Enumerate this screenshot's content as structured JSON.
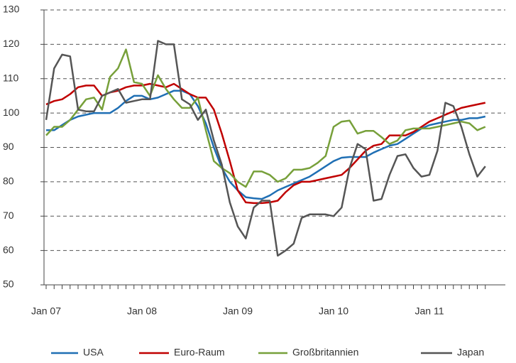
{
  "chart_data": {
    "type": "line",
    "categories": [
      "Jan 07",
      null,
      null,
      null,
      null,
      null,
      null,
      null,
      null,
      null,
      null,
      null,
      "Jan 08",
      null,
      null,
      null,
      null,
      null,
      null,
      null,
      null,
      null,
      null,
      null,
      "Jan 09",
      null,
      null,
      null,
      null,
      null,
      null,
      null,
      null,
      null,
      null,
      null,
      "Jan 10",
      null,
      null,
      null,
      null,
      null,
      null,
      null,
      null,
      null,
      null,
      null,
      "Jan 11",
      null,
      null,
      null,
      null,
      null,
      null,
      null
    ],
    "ylim": [
      50,
      130
    ],
    "yticks": [
      50,
      60,
      70,
      80,
      90,
      100,
      110,
      120,
      130
    ],
    "grid": true,
    "legend": "bottom",
    "series": [
      {
        "name": "USA",
        "color": "#1f6fb4",
        "values": [
          95,
          95,
          96.5,
          98,
          99,
          99.5,
          100,
          100,
          100,
          101.5,
          103.5,
          105,
          105,
          104,
          104.5,
          105.5,
          106.5,
          106.5,
          105.5,
          102,
          97,
          90,
          84,
          80,
          77.5,
          75.5,
          75.2,
          75,
          76,
          77.5,
          78.5,
          79.5,
          80.5,
          81.5,
          83,
          84.5,
          86,
          87,
          87.2,
          87.2,
          87.2,
          88.5,
          89.5,
          90.5,
          91,
          92.5,
          94,
          95.5,
          96.5,
          97,
          97.5,
          98,
          98,
          98.5,
          98.5,
          99
        ]
      },
      {
        "name": "Euro-Raum",
        "color": "#c00000",
        "values": [
          102.5,
          103.5,
          104,
          105.5,
          107.5,
          108,
          108,
          105,
          106,
          106.5,
          107.5,
          108,
          108,
          108.5,
          108,
          107.5,
          108.5,
          107,
          105.5,
          104.5,
          104.5,
          101,
          94,
          86,
          77.5,
          74,
          73.8,
          73.8,
          74,
          74.5,
          77,
          79,
          80,
          80,
          80.5,
          81,
          81.5,
          82,
          84,
          86.5,
          89,
          90.5,
          91,
          93.5,
          93.5,
          93.5,
          94.5,
          96,
          97.5,
          98.5,
          99.5,
          100.5,
          101.5,
          102,
          102.5,
          103
        ]
      },
      {
        "name": "Großbritannien",
        "color": "#77a03a",
        "values": [
          93.5,
          96,
          96,
          98,
          101,
          104,
          104.5,
          101,
          110.5,
          113,
          118.5,
          109,
          108.5,
          105,
          111,
          107,
          104,
          101.5,
          101.5,
          104.5,
          95,
          86,
          84,
          82.5,
          80,
          78.5,
          83,
          83,
          82,
          80,
          81,
          83.5,
          83.5,
          84,
          85.5,
          87.5,
          96,
          97.5,
          97.8,
          94,
          94.8,
          94.8,
          93,
          91,
          92,
          95,
          95.5,
          95.5,
          95.5,
          96,
          96.5,
          97,
          97.5,
          97,
          95,
          96
        ]
      },
      {
        "name": "Japan",
        "color": "#555555",
        "values": [
          98,
          113,
          117,
          116.5,
          101,
          100.5,
          100.5,
          105,
          106,
          107,
          103,
          103.5,
          104,
          104,
          121,
          120,
          120,
          104,
          102.5,
          98,
          101,
          92,
          85,
          74,
          67,
          63.5,
          72.5,
          74.5,
          74.5,
          58.5,
          60,
          62,
          69.5,
          70.5,
          70.5,
          70.5,
          70,
          72.5,
          84,
          91,
          89.5,
          74.5,
          75,
          82,
          87.5,
          88,
          84,
          81.5,
          82,
          89,
          103,
          102,
          96,
          88,
          81.5,
          84.5
        ]
      }
    ]
  }
}
